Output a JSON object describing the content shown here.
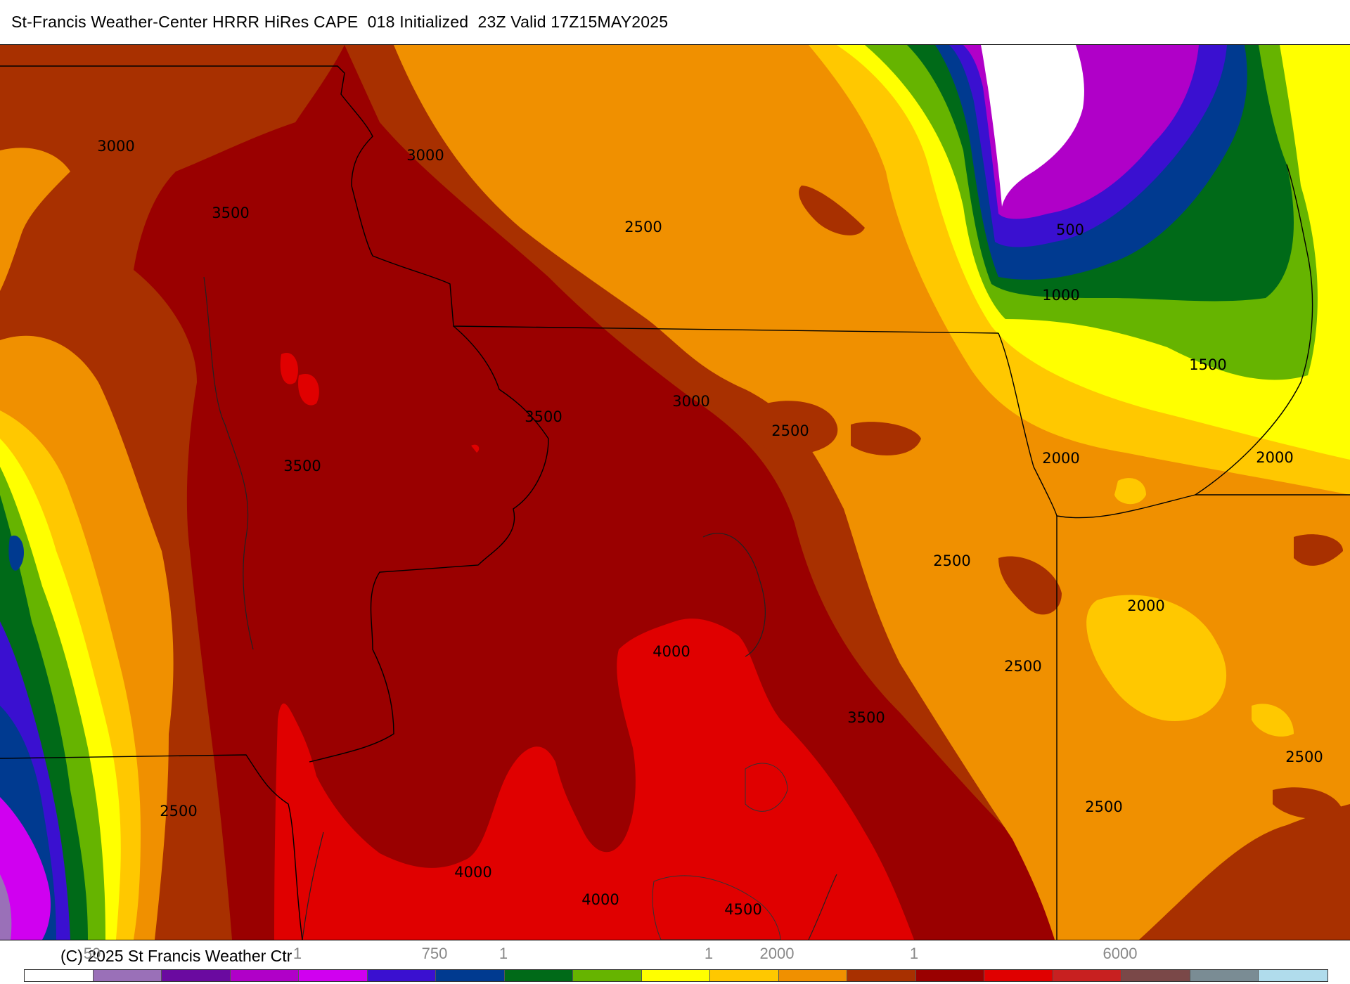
{
  "title": "St-Francis Weather-Center HRRR HiRes CAPE  018 Initialized  23Z Valid 17Z15MAY2025",
  "copyright": "(C) 2025 St Francis Weather Ctr",
  "contour_labels": [
    "3000",
    "3000",
    "3500",
    "2500",
    "3500",
    "3500",
    "3000",
    "2500",
    "500",
    "1000",
    "1500",
    "2000",
    "2000",
    "2500",
    "2000",
    "2500",
    "4000",
    "3500",
    "2500",
    "2500",
    "2500",
    "4000",
    "4000",
    "4500",
    "2500"
  ],
  "scale_ticks": [
    "50",
    "1",
    "750",
    "1",
    "1",
    "2000",
    "1",
    "6000"
  ],
  "colorbar": [
    "#ffffff",
    "#9a70b8",
    "#6a0aa0",
    "#b000c8",
    "#d000f0",
    "#3a10d0",
    "#003a90",
    "#006a18",
    "#66b400",
    "#ffff00",
    "#ffc800",
    "#f09000",
    "#a83000",
    "#9a0000",
    "#e00000",
    "#c82020",
    "#7a4848",
    "#7a8c94",
    "#b0dcec"
  ],
  "palette": {
    "cape_0": "#ffffff",
    "cape_250": "#9a70b8",
    "cape_500": "#b000c8",
    "cape_750": "#3a10d0",
    "cape_1000": "#003a90",
    "cape_1250": "#006a18",
    "cape_1500": "#66b400",
    "cape_1750": "#ffff00",
    "cape_2000": "#ffc800",
    "cape_2500": "#f09000",
    "cape_3000": "#a83000",
    "cape_3500": "#9a0000",
    "cape_4000": "#e00000"
  }
}
